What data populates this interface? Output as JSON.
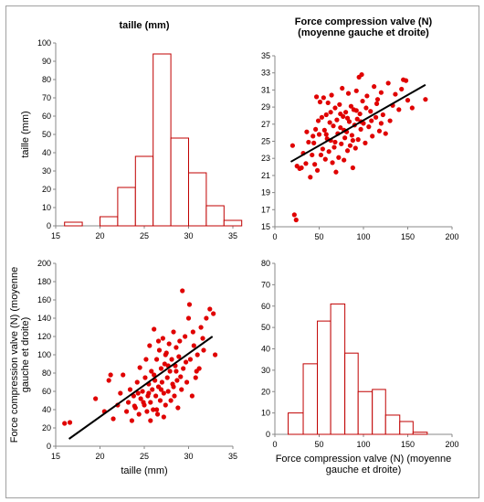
{
  "chart_data": [
    {
      "id": "hist-taille",
      "type": "bar",
      "title": "taille (mm)",
      "xlabel": "",
      "ylabel": "taille (mm)",
      "xlim": [
        15,
        35
      ],
      "ylim": [
        0,
        100
      ],
      "xticks": [
        15,
        20,
        25,
        30,
        35
      ],
      "yticks": [
        0,
        10,
        20,
        30,
        40,
        50,
        60,
        70,
        80,
        90,
        100
      ],
      "bins": [
        {
          "x0": 16,
          "x1": 18,
          "count": 2
        },
        {
          "x0": 18,
          "x1": 20,
          "count": 0
        },
        {
          "x0": 20,
          "x1": 22,
          "count": 5
        },
        {
          "x0": 22,
          "x1": 24,
          "count": 21
        },
        {
          "x0": 24,
          "x1": 26,
          "count": 38
        },
        {
          "x0": 26,
          "x1": 28,
          "count": 94
        },
        {
          "x0": 28,
          "x1": 30,
          "count": 48
        },
        {
          "x0": 30,
          "x1": 32,
          "count": 29
        },
        {
          "x0": 32,
          "x1": 34,
          "count": 11
        },
        {
          "x0": 34,
          "x1": 36,
          "count": 3
        }
      ],
      "bar_color": "#c00000",
      "grid": false
    },
    {
      "id": "scatter-force-vs-taille",
      "type": "scatter",
      "title": "Force compression valve (N) (moyenne gauche et droite)",
      "title_lines": [
        "Force compression valve (N)",
        "(moyenne gauche et droite)"
      ],
      "xlabel": "",
      "ylabel": "",
      "xlim": [
        0,
        200
      ],
      "ylim": [
        15,
        35
      ],
      "xticks": [
        0,
        50,
        100,
        150,
        200
      ],
      "yticks": [
        15,
        17,
        19,
        21,
        23,
        25,
        27,
        29,
        31,
        33,
        35
      ],
      "trendline": {
        "x": [
          18,
          170
        ],
        "y": [
          22.6,
          31.6
        ]
      },
      "points": [
        [
          22,
          16.4
        ],
        [
          24,
          15.8
        ],
        [
          20,
          24.5
        ],
        [
          25,
          22.1
        ],
        [
          28,
          21.8
        ],
        [
          30,
          21.9
        ],
        [
          32,
          23.6
        ],
        [
          35,
          22.4
        ],
        [
          38,
          24.9
        ],
        [
          40,
          20.8
        ],
        [
          42,
          23.4
        ],
        [
          44,
          24.8
        ],
        [
          45,
          22.3
        ],
        [
          46,
          26.4
        ],
        [
          47,
          30.2
        ],
        [
          48,
          21.6
        ],
        [
          50,
          25.8
        ],
        [
          51,
          29.6
        ],
        [
          52,
          23.4
        ],
        [
          53,
          27.8
        ],
        [
          54,
          24.1
        ],
        [
          55,
          30.1
        ],
        [
          56,
          26.3
        ],
        [
          57,
          22.9
        ],
        [
          58,
          28.1
        ],
        [
          59,
          25.3
        ],
        [
          60,
          29.5
        ],
        [
          61,
          23.8
        ],
        [
          62,
          27.2
        ],
        [
          63,
          25.1
        ],
        [
          64,
          30.4
        ],
        [
          65,
          22.5
        ],
        [
          66,
          26.8
        ],
        [
          67,
          24.3
        ],
        [
          68,
          28.9
        ],
        [
          69,
          21.4
        ],
        [
          70,
          27.5
        ],
        [
          71,
          25.9
        ],
        [
          72,
          23.1
        ],
        [
          73,
          29.3
        ],
        [
          74,
          26.6
        ],
        [
          75,
          24.7
        ],
        [
          76,
          31.2
        ],
        [
          77,
          27.9
        ],
        [
          78,
          22.8
        ],
        [
          79,
          25.4
        ],
        [
          80,
          28.4
        ],
        [
          81,
          26.1
        ],
        [
          82,
          23.9
        ],
        [
          83,
          30.6
        ],
        [
          84,
          27.3
        ],
        [
          85,
          24.5
        ],
        [
          86,
          29.1
        ],
        [
          87,
          25.7
        ],
        [
          88,
          21.9
        ],
        [
          89,
          28.7
        ],
        [
          90,
          26.9
        ],
        [
          91,
          24.2
        ],
        [
          92,
          30.9
        ],
        [
          93,
          27.6
        ],
        [
          94,
          25.2
        ],
        [
          95,
          32.5
        ],
        [
          96,
          28.2
        ],
        [
          97,
          26.4
        ],
        [
          98,
          32.8
        ],
        [
          99,
          29.7
        ],
        [
          100,
          27.1
        ],
        [
          102,
          24.8
        ],
        [
          104,
          30.3
        ],
        [
          106,
          26.7
        ],
        [
          108,
          28.5
        ],
        [
          110,
          25.6
        ],
        [
          112,
          31.4
        ],
        [
          114,
          27.8
        ],
        [
          116,
          29.9
        ],
        [
          118,
          26.2
        ],
        [
          120,
          30.7
        ],
        [
          122,
          28.1
        ],
        [
          125,
          25.9
        ],
        [
          128,
          31.8
        ],
        [
          130,
          27.4
        ],
        [
          133,
          29.2
        ],
        [
          136,
          30.5
        ],
        [
          140,
          28.7
        ],
        [
          143,
          31.1
        ],
        [
          145,
          32.2
        ],
        [
          148,
          32.1
        ],
        [
          150,
          29.8
        ],
        [
          155,
          28.9
        ],
        [
          170,
          29.9
        ],
        [
          36,
          26.1
        ],
        [
          43,
          25.6
        ],
        [
          49,
          27.4
        ],
        [
          58,
          25.8
        ],
        [
          63,
          28.4
        ],
        [
          68,
          24.9
        ],
        [
          74,
          28.2
        ],
        [
          78,
          26.3
        ],
        [
          82,
          27.7
        ],
        [
          88,
          25.1
        ],
        [
          92,
          28.6
        ],
        [
          97,
          27.3
        ],
        [
          103,
          28.9
        ],
        [
          109,
          27.4
        ],
        [
          115,
          29.4
        ],
        [
          120,
          27.1
        ]
      ]
    },
    {
      "id": "scatter-taille-vs-force",
      "type": "scatter",
      "title": "",
      "xlabel": "taille  (mm)",
      "ylabel": "Force compression valve (N) (moyenne gauche et droite)",
      "ylabel_lines": [
        "Force compression valve (N) (moyenne",
        "gauche et droite)"
      ],
      "xlim": [
        15,
        35
      ],
      "ylim": [
        0,
        200
      ],
      "xticks": [
        15,
        20,
        25,
        30,
        35
      ],
      "yticks": [
        0,
        20,
        40,
        60,
        80,
        100,
        120,
        140,
        160,
        180,
        200
      ],
      "trendline": {
        "x": [
          16.5,
          32.7
        ],
        "y": [
          8,
          120
        ]
      },
      "points": [
        [
          16,
          25
        ],
        [
          16.6,
          26
        ],
        [
          19.5,
          52
        ],
        [
          20.5,
          38
        ],
        [
          21,
          72
        ],
        [
          21.2,
          78
        ],
        [
          21.5,
          30
        ],
        [
          22,
          45
        ],
        [
          22.3,
          58
        ],
        [
          22.6,
          78
        ],
        [
          23,
          38
        ],
        [
          23.2,
          48
        ],
        [
          23.4,
          62
        ],
        [
          23.6,
          28
        ],
        [
          23.8,
          55
        ],
        [
          24,
          42
        ],
        [
          24.2,
          70
        ],
        [
          24.4,
          35
        ],
        [
          24.5,
          86
        ],
        [
          24.6,
          52
        ],
        [
          24.8,
          60
        ],
        [
          25,
          45
        ],
        [
          25.1,
          75
        ],
        [
          25.2,
          95
        ],
        [
          25.3,
          38
        ],
        [
          25.4,
          55
        ],
        [
          25.5,
          68
        ],
        [
          25.6,
          110
        ],
        [
          25.7,
          48
        ],
        [
          25.8,
          82
        ],
        [
          25.9,
          62
        ],
        [
          26,
          40
        ],
        [
          26.1,
          128
        ],
        [
          26.2,
          72
        ],
        [
          26.3,
          55
        ],
        [
          26.4,
          95
        ],
        [
          26.5,
          35
        ],
        [
          26.6,
          65
        ],
        [
          26.7,
          105
        ],
        [
          26.8,
          50
        ],
        [
          26.9,
          85
        ],
        [
          27,
          70
        ],
        [
          27.1,
          118
        ],
        [
          27.2,
          58
        ],
        [
          27.3,
          90
        ],
        [
          27.4,
          45
        ],
        [
          27.5,
          102
        ],
        [
          27.6,
          75
        ],
        [
          27.7,
          60
        ],
        [
          27.8,
          112
        ],
        [
          27.9,
          82
        ],
        [
          28,
          50
        ],
        [
          28.1,
          95
        ],
        [
          28.2,
          68
        ],
        [
          28.3,
          125
        ],
        [
          28.4,
          55
        ],
        [
          28.5,
          88
        ],
        [
          28.6,
          108
        ],
        [
          28.7,
          72
        ],
        [
          28.8,
          42
        ],
        [
          28.9,
          98
        ],
        [
          29,
          115
        ],
        [
          29.2,
          62
        ],
        [
          29.4,
          85
        ],
        [
          29.6,
          120
        ],
        [
          29.8,
          70
        ],
        [
          30,
          140
        ],
        [
          30.2,
          95
        ],
        [
          30.4,
          55
        ],
        [
          30.6,
          110
        ],
        [
          30.8,
          75
        ],
        [
          31,
          100
        ],
        [
          31.2,
          85
        ],
        [
          31.4,
          130
        ],
        [
          31.6,
          118
        ],
        [
          32,
          140
        ],
        [
          32.4,
          150
        ],
        [
          32.8,
          145
        ],
        [
          33,
          100
        ],
        [
          29.3,
          170
        ],
        [
          30.1,
          155
        ],
        [
          27.2,
          32
        ],
        [
          26.4,
          40
        ],
        [
          25.7,
          28
        ],
        [
          24.9,
          48
        ],
        [
          24.3,
          58
        ],
        [
          23.9,
          44
        ],
        [
          28.6,
          82
        ],
        [
          29.7,
          92
        ],
        [
          30.9,
          82
        ],
        [
          27.7,
          88
        ],
        [
          26.9,
          62
        ],
        [
          26.1,
          78
        ],
        [
          25.5,
          58
        ],
        [
          28.3,
          65
        ],
        [
          29.1,
          76
        ],
        [
          31.7,
          105
        ],
        [
          30.5,
          125
        ],
        [
          27.4,
          100
        ],
        [
          26.6,
          115
        ]
      ]
    },
    {
      "id": "hist-force",
      "type": "bar",
      "title": "",
      "xlabel": "Force compression valve (N) (moyenne gauche et droite)",
      "xlabel_lines": [
        "Force compression valve (N) (moyenne",
        "gauche et droite)"
      ],
      "ylabel": "",
      "xlim": [
        0,
        200
      ],
      "ylim": [
        0,
        80
      ],
      "xticks": [
        0,
        50,
        100,
        150,
        200
      ],
      "yticks": [
        0,
        10,
        20,
        30,
        40,
        50,
        60,
        70,
        80
      ],
      "bins": [
        {
          "x0": 15,
          "x1": 32,
          "count": 10
        },
        {
          "x0": 32,
          "x1": 48,
          "count": 33
        },
        {
          "x0": 48,
          "x1": 63,
          "count": 53
        },
        {
          "x0": 63,
          "x1": 79,
          "count": 61
        },
        {
          "x0": 79,
          "x1": 94,
          "count": 38
        },
        {
          "x0": 94,
          "x1": 110,
          "count": 20
        },
        {
          "x0": 110,
          "x1": 125,
          "count": 21
        },
        {
          "x0": 125,
          "x1": 141,
          "count": 9
        },
        {
          "x0": 141,
          "x1": 156,
          "count": 6
        },
        {
          "x0": 156,
          "x1": 172,
          "count": 1
        }
      ],
      "bar_color": "#c00000",
      "grid": false
    }
  ]
}
